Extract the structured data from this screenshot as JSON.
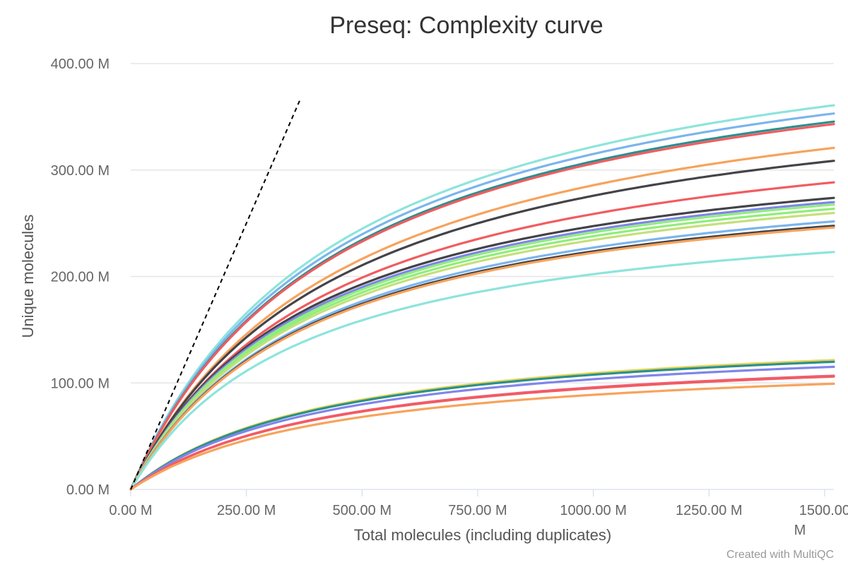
{
  "chart_data": {
    "type": "line",
    "title": "Preseq: Complexity curve",
    "xlabel": "Total molecules (including duplicates)",
    "ylabel": "Unique molecules",
    "xlim": [
      0,
      1520
    ],
    "ylim": [
      0,
      400
    ],
    "x_ticks": [
      0,
      250,
      500,
      750,
      1000,
      1250,
      1500
    ],
    "x_tick_labels": [
      "0.00 M",
      "250.00 M",
      "500.00 M",
      "750.00 M",
      "1000.00 M",
      "1250.00 M",
      "1500.00"
    ],
    "x_tick_overflow": "M",
    "y_ticks": [
      0,
      100,
      200,
      300,
      400
    ],
    "y_tick_labels": [
      "0.00 M",
      "100.00 M",
      "200.00 M",
      "300.00 M",
      "400.00 M"
    ],
    "grid": true,
    "credit": "Created with MultiQC",
    "reference_line": {
      "style": "dashed",
      "color": "#000000",
      "x": [
        0,
        365
      ],
      "y": [
        0,
        365
      ]
    },
    "series": [
      {
        "color": "#8de4dc",
        "vmax": 470,
        "k": 460
      },
      {
        "color": "#7cb5ec",
        "vmax": 460,
        "k": 460
      },
      {
        "color": "#2b908f",
        "vmax": 450,
        "k": 460
      },
      {
        "color": "#f15c60",
        "vmax": 447,
        "k": 460
      },
      {
        "color": "#f7a35c",
        "vmax": 420,
        "k": 470
      },
      {
        "color": "#434348",
        "vmax": 400,
        "k": 450
      },
      {
        "color": "#f15c60",
        "vmax": 370,
        "k": 430
      },
      {
        "color": "#434348",
        "vmax": 345,
        "k": 395
      },
      {
        "color": "#8085e9",
        "vmax": 340,
        "k": 395
      },
      {
        "color": "#90ed7d",
        "vmax": 338,
        "k": 400
      },
      {
        "color": "#90ed7d",
        "vmax": 333,
        "k": 400
      },
      {
        "color": "#c5e07a",
        "vmax": 328,
        "k": 400
      },
      {
        "color": "#7cb5ec",
        "vmax": 318,
        "k": 400
      },
      {
        "color": "#434348",
        "vmax": 312,
        "k": 395
      },
      {
        "color": "#f7a35c",
        "vmax": 310,
        "k": 395
      },
      {
        "color": "#8de4dc",
        "vmax": 278,
        "k": 375
      },
      {
        "color": "#e4d354",
        "vmax": 155,
        "k": 420
      },
      {
        "color": "#2b908f",
        "vmax": 153,
        "k": 420
      },
      {
        "color": "#8085e9",
        "vmax": 147,
        "k": 420
      },
      {
        "color": "#f15c80",
        "vmax": 137,
        "k": 430
      },
      {
        "color": "#f15c60",
        "vmax": 136,
        "k": 430
      },
      {
        "color": "#f7a35c",
        "vmax": 128,
        "k": 440
      }
    ]
  }
}
